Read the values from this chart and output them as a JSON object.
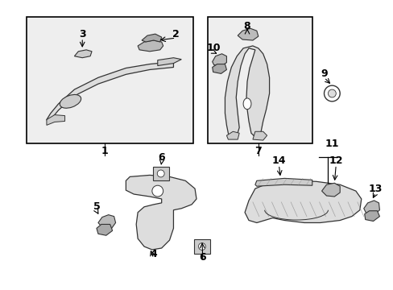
{
  "bg_color": "#ffffff",
  "line_color": "#000000",
  "part_fill": "#e8e8e8",
  "part_outline": "#333333",
  "box_fill": "#eeeeee",
  "figsize": [
    4.89,
    3.6
  ],
  "dpi": 100
}
